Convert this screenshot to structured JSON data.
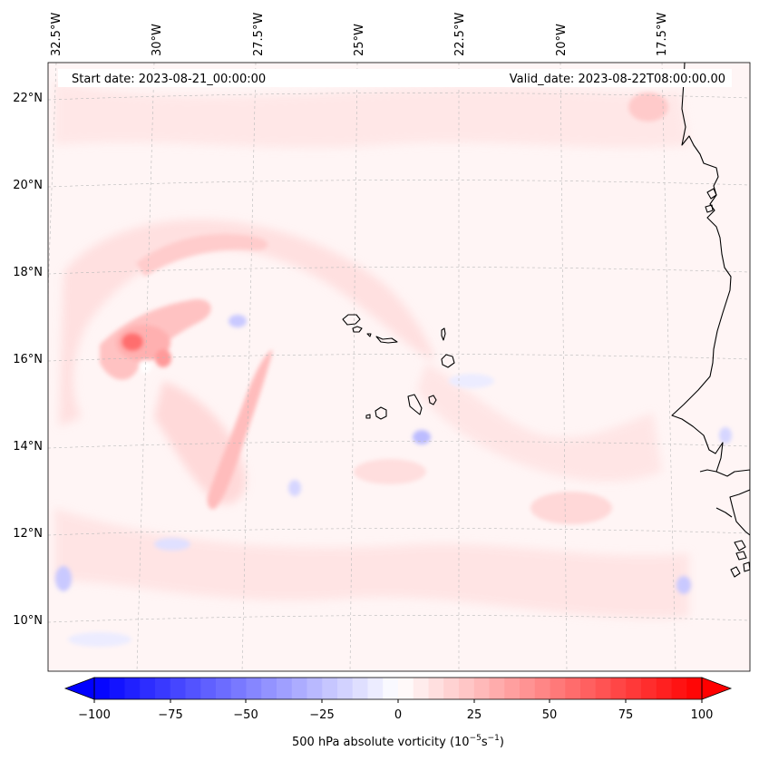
{
  "header": {
    "start_date": "Start date: 2023-08-21_00:00:00",
    "valid_date": "Valid_date: 2023-08-22T08:00:00.00"
  },
  "longitude_labels": [
    "32.5°W",
    "30°W",
    "27.5°W",
    "25°W",
    "22.5°W",
    "20°W",
    "17.5°W"
  ],
  "latitude_labels": [
    "22°N",
    "20°N",
    "18°N",
    "16°N",
    "14°N",
    "12°N",
    "10°N"
  ],
  "colorbar": {
    "title_prefix": "500 hPa absolute vorticity (10",
    "title_exp1": "−5",
    "title_mid": "s",
    "title_exp2": "−1",
    "title_suffix": ")",
    "ticks": [
      "−100",
      "−75",
      "−50",
      "−25",
      "0",
      "25",
      "50",
      "75",
      "100"
    ],
    "min": -100,
    "max": 100,
    "levels": 40,
    "negative_color": "#0000ff",
    "positive_color": "#ff0000"
  },
  "colors": {
    "background_field": "#fff5f5",
    "light_pink": "#ffdede",
    "mid_pink": "#ffc2c2",
    "strong_pink": "#ff9a9a",
    "peak_red": "#ff6e6e",
    "light_blue": "#e6e6ff",
    "mid_blue": "#c9c9ff",
    "coastline": "#000000"
  }
}
